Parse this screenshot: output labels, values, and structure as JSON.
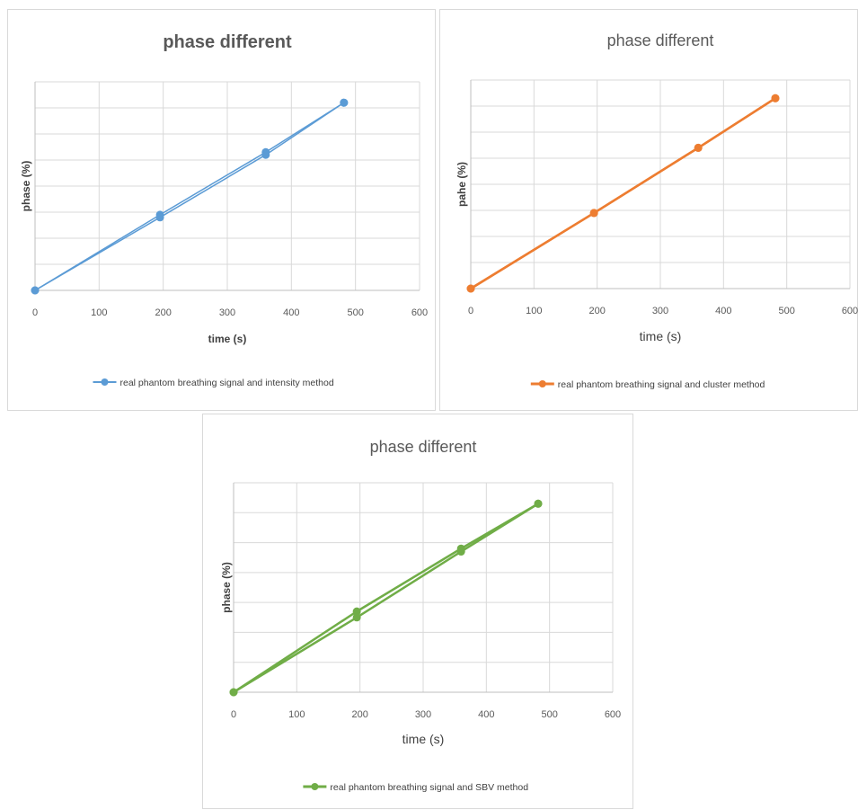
{
  "chart_data": [
    {
      "type": "line",
      "title": "phase different",
      "xlabel": "time (s)",
      "ylabel": "phase (%)",
      "xlim": [
        0,
        600
      ],
      "xticks": [
        "0",
        "100",
        "200",
        "300",
        "400",
        "500",
        "600"
      ],
      "y_tick_labels_shown": false,
      "grid": true,
      "legend_position": "bottom",
      "color": "#5B9BD5",
      "series": [
        {
          "name": "real phantom breathing signal and intensity method",
          "x": [
            0,
            195,
            360,
            482
          ],
          "y": [
            0,
            29,
            53,
            72
          ]
        },
        {
          "x": [
            0,
            195,
            360,
            482
          ],
          "y": [
            0,
            28,
            52,
            72
          ]
        }
      ]
    },
    {
      "type": "line",
      "title": "phase different",
      "xlabel": "time  (s)",
      "ylabel": "pahe (%)",
      "xlim": [
        0,
        600
      ],
      "xticks": [
        "0",
        "100",
        "200",
        "300",
        "400",
        "500",
        "600"
      ],
      "y_tick_labels_shown": false,
      "grid": true,
      "legend_position": "bottom",
      "color": "#ED7D31",
      "series": [
        {
          "name": "real phantom breathing signal and cluster method",
          "x": [
            0,
            195,
            360,
            482
          ],
          "y": [
            0,
            29,
            54,
            73
          ]
        },
        {
          "x": [
            0,
            195,
            360,
            482
          ],
          "y": [
            0,
            29,
            54,
            73
          ]
        }
      ]
    },
    {
      "type": "line",
      "title": "phase different",
      "xlabel": "time  (s)",
      "ylabel": "phase (%)",
      "xlim": [
        0,
        600
      ],
      "xticks": [
        "0",
        "100",
        "200",
        "300",
        "400",
        "500",
        "600"
      ],
      "y_tick_labels_shown": false,
      "grid": true,
      "legend_position": "bottom",
      "color": "#70AD47",
      "series": [
        {
          "name": "real phantom breathing signal and SBV method",
          "x": [
            0,
            195,
            360,
            482
          ],
          "y": [
            0,
            27,
            48,
            63
          ]
        },
        {
          "x": [
            0,
            195,
            360,
            482
          ],
          "y": [
            0,
            25,
            47,
            63
          ]
        }
      ]
    }
  ]
}
